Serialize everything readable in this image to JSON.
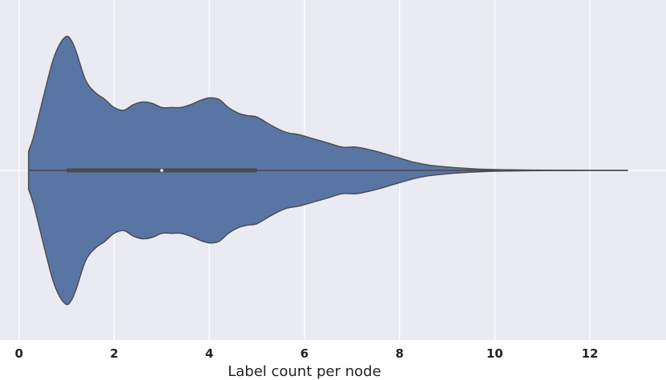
{
  "chart_data": {
    "type": "violin",
    "orientation": "horizontal",
    "xlabel": "Label count per node",
    "xlim": [
      -0.4,
      13.6
    ],
    "xticks": [
      0,
      2,
      4,
      6,
      8,
      10,
      12
    ],
    "grid": true,
    "colors": {
      "background": "#eaeaf2",
      "grid": "#ffffff",
      "violin_fill": "#5975a4",
      "violin_edge": "#4a4a4a",
      "box": "#4a4a4a",
      "median": "#ffffff"
    },
    "density": {
      "x": [
        0.2,
        0.3,
        0.5,
        0.7,
        0.85,
        1.0,
        1.1,
        1.2,
        1.4,
        1.6,
        1.8,
        2.0,
        2.2,
        2.4,
        2.6,
        2.8,
        3.0,
        3.2,
        3.4,
        3.6,
        3.8,
        4.0,
        4.2,
        4.4,
        4.6,
        4.8,
        5.0,
        5.3,
        5.6,
        5.9,
        6.2,
        6.5,
        6.8,
        7.1,
        7.5,
        7.8,
        8.0,
        8.3,
        8.6,
        9.0,
        9.4,
        9.8,
        10.2,
        10.6,
        11.0,
        11.5,
        12.0,
        12.8
      ],
      "width": [
        0.14,
        0.24,
        0.52,
        0.79,
        0.92,
        0.98,
        0.95,
        0.87,
        0.66,
        0.57,
        0.52,
        0.46,
        0.44,
        0.48,
        0.5,
        0.49,
        0.46,
        0.46,
        0.46,
        0.48,
        0.51,
        0.53,
        0.52,
        0.46,
        0.42,
        0.4,
        0.39,
        0.33,
        0.28,
        0.26,
        0.23,
        0.2,
        0.17,
        0.17,
        0.14,
        0.11,
        0.09,
        0.06,
        0.04,
        0.025,
        0.015,
        0.008,
        0.005,
        0.003,
        0.002,
        0.001,
        0.0005,
        0.0
      ]
    },
    "box": {
      "q1": 1.0,
      "median": 3.0,
      "q3": 5.0,
      "whisker_low": 0.2,
      "whisker_high": 12.8
    }
  }
}
